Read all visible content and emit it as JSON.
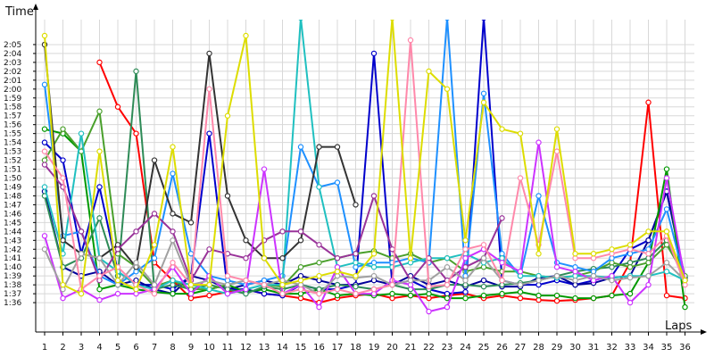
{
  "chart_data": {
    "type": "line",
    "ylabel": "Time",
    "xlabel": "Laps",
    "grid": true,
    "x": [
      1,
      2,
      3,
      4,
      5,
      6,
      7,
      8,
      9,
      10,
      11,
      12,
      13,
      14,
      15,
      16,
      17,
      18,
      19,
      20,
      21,
      22,
      23,
      24,
      25,
      26,
      27,
      28,
      29,
      30,
      31,
      32,
      33,
      34,
      35,
      36
    ],
    "x_ticks": [
      "1",
      "2",
      "3",
      "4",
      "5",
      "6",
      "7",
      "8",
      "9",
      "10",
      "11",
      "12",
      "13",
      "14",
      "15",
      "16",
      "17",
      "18",
      "19",
      "20",
      "21",
      "22",
      "23",
      "24",
      "25",
      "26",
      "27",
      "28",
      "29",
      "30",
      "31",
      "32",
      "33",
      "34",
      "35",
      "36"
    ],
    "ylim": [
      93,
      127
    ],
    "y_ticks": [
      "1:36",
      "1:37",
      "1:38",
      "1:39",
      "1:40",
      "1:41",
      "1:42",
      "1:43",
      "1:44",
      "1:45",
      "1:46",
      "1:47",
      "1:48",
      "1:49",
      "1:50",
      "1:51",
      "1:52",
      "1:53",
      "1:54",
      "1:55",
      "1:56",
      "1:57",
      "1:58",
      "1:59",
      "2:00",
      "2:01",
      "2:02",
      "2:03",
      "2:04",
      "2:05"
    ],
    "y_tick_values": [
      96,
      97,
      98,
      99,
      100,
      101,
      102,
      103,
      104,
      105,
      106,
      107,
      108,
      109,
      110,
      111,
      112,
      113,
      114,
      115,
      116,
      117,
      118,
      119,
      120,
      121,
      122,
      123,
      124,
      125
    ],
    "series": [
      {
        "color": "#ff0000",
        "values": [
          null,
          null,
          null,
          123.0,
          118.0,
          115.0,
          100.5,
          98.5,
          96.5,
          96.8,
          97.2,
          97.5,
          97.0,
          96.8,
          96.5,
          96.0,
          96.5,
          96.8,
          97.0,
          96.5,
          96.8,
          96.5,
          96.8,
          97.0,
          96.5,
          96.8,
          96.5,
          96.3,
          96.2,
          96.3,
          96.5,
          96.8,
          100.5,
          118.5,
          96.8,
          96.5
        ]
      },
      {
        "color": "#0000cc",
        "values": [
          114.0,
          112.0,
          101.5,
          109.0,
          99.5,
          98.0,
          98.0,
          97.5,
          99.0,
          115.0,
          97.5,
          97.5,
          97.0,
          96.8,
          98.0,
          97.5,
          97.5,
          98.0,
          124.0,
          98.0,
          98.5,
          97.5,
          97.0,
          97.2,
          128.0,
          98.5,
          98.0,
          98.0,
          98.5,
          98.0,
          98.5,
          99.0,
          102.0,
          103.0,
          108.5,
          98.5
        ]
      },
      {
        "color": "#000099",
        "values": [
          108.5,
          100.0,
          99.0,
          99.5,
          98.0,
          98.5,
          97.5,
          97.0,
          99.0,
          98.5,
          97.5,
          98.0,
          98.5,
          98.0,
          99.0,
          98.5,
          98.0,
          98.0,
          98.5,
          98.0,
          99.0,
          98.0,
          98.5,
          97.8,
          98.5,
          97.8,
          97.8,
          98.8,
          99.0,
          98.0,
          98.2,
          98.8,
          99.0,
          103.0,
          108.5,
          98.8
        ]
      },
      {
        "color": "#009900",
        "values": [
          115.5,
          115.0,
          113.0,
          97.5,
          98.0,
          97.5,
          97.2,
          97.0,
          97.0,
          97.5,
          98.0,
          97.2,
          97.5,
          97.0,
          97.0,
          97.5,
          96.8,
          97.0,
          96.8,
          97.0,
          96.8,
          97.0,
          96.5,
          96.5,
          96.8,
          97.0,
          97.2,
          96.8,
          96.8,
          96.5,
          96.5,
          96.8,
          97.0,
          100.5,
          111.0,
          95.5
        ]
      },
      {
        "color": "#2e8b57",
        "values": [
          108.0,
          100.0,
          101.0,
          105.5,
          99.0,
          122.0,
          97.5,
          98.0,
          97.5,
          98.0,
          97.5,
          97.0,
          97.8,
          97.5,
          98.0,
          97.5,
          98.0,
          97.8,
          97.5,
          98.0,
          97.5,
          97.5,
          98.0,
          98.0,
          97.8,
          98.0,
          98.2,
          98.5,
          99.0,
          99.5,
          99.8,
          100.0,
          100.5,
          101.0,
          103.0,
          98.5
        ]
      },
      {
        "color": "#4aa02c",
        "values": [
          112.0,
          115.5,
          113.0,
          117.5,
          101.5,
          100.0,
          97.8,
          98.5,
          97.5,
          97.5,
          98.0,
          98.5,
          98.0,
          97.8,
          100.0,
          100.5,
          101.0,
          101.5,
          101.8,
          101.0,
          101.5,
          100.5,
          101.0,
          99.5,
          100.0,
          99.5,
          99.5,
          99.0,
          98.8,
          99.0,
          99.5,
          100.5,
          100.0,
          100.5,
          102.5,
          99.0
        ]
      },
      {
        "color": "#1e90ff",
        "values": [
          120.5,
          103.5,
          104.0,
          99.0,
          98.0,
          99.5,
          101.0,
          110.5,
          101.5,
          99.0,
          98.5,
          98.0,
          98.5,
          99.0,
          113.5,
          109.0,
          109.5,
          100.0,
          100.5,
          100.5,
          101.0,
          100.5,
          128.0,
          99.0,
          119.5,
          101.5,
          99.0,
          108.0,
          100.5,
          100.0,
          99.5,
          101.0,
          101.5,
          102.0,
          106.5,
          98.5
        ]
      },
      {
        "color": "#20c0c0",
        "values": [
          109.0,
          101.5,
          115.0,
          101.0,
          99.5,
          98.0,
          97.5,
          98.5,
          98.0,
          97.5,
          97.0,
          97.5,
          98.0,
          98.0,
          128.0,
          109.0,
          100.0,
          100.5,
          100.0,
          100.0,
          100.5,
          101.0,
          101.0,
          101.5,
          100.5,
          101.0,
          99.0,
          99.0,
          98.8,
          99.0,
          99.0,
          98.8,
          99.0,
          99.0,
          99.5,
          98.5
        ]
      },
      {
        "color": "#333333",
        "values": [
          125.0,
          103.0,
          101.5,
          101.0,
          102.5,
          100.0,
          112.0,
          106.0,
          105.0,
          124.0,
          108.0,
          103.0,
          101.0,
          101.0,
          103.0,
          113.5,
          113.5,
          107.0,
          null,
          null,
          null,
          null,
          null,
          null,
          null,
          null,
          null,
          null,
          null,
          null,
          null,
          null,
          null,
          null,
          null,
          null
        ]
      },
      {
        "color": "#993399",
        "values": [
          111.5,
          109.0,
          104.0,
          98.5,
          102.0,
          104.0,
          106.0,
          104.0,
          98.5,
          102.0,
          101.5,
          101.0,
          103.0,
          104.0,
          104.0,
          102.5,
          101.0,
          101.5,
          108.0,
          102.0,
          98.5,
          101.0,
          98.5,
          100.0,
          101.0,
          105.5,
          null,
          null,
          null,
          null,
          null,
          null,
          null,
          null,
          null,
          null
        ]
      },
      {
        "color": "#cc33ff",
        "values": [
          103.5,
          96.5,
          97.5,
          96.3,
          97.0,
          97.0,
          97.5,
          100.0,
          97.0,
          99.0,
          97.0,
          97.5,
          111.0,
          97.0,
          98.0,
          95.5,
          100.0,
          97.0,
          97.0,
          98.5,
          98.0,
          95.0,
          95.5,
          101.0,
          102.0,
          100.5,
          99.5,
          114.0,
          100.0,
          99.5,
          98.5,
          99.0,
          96.0,
          98.0,
          110.0,
          98.5
        ]
      },
      {
        "color": "#a0a0a0",
        "values": [
          102.0,
          97.5,
          101.5,
          101.0,
          98.0,
          100.5,
          98.0,
          103.0,
          98.0,
          98.5,
          98.0,
          98.5,
          98.0,
          98.5,
          98.0,
          97.0,
          99.0,
          98.8,
          99.0,
          98.0,
          98.5,
          98.5,
          100.0,
          98.5,
          101.0,
          98.5,
          98.0,
          98.5,
          99.0,
          98.5,
          99.0,
          98.5,
          98.8,
          99.0,
          100.5,
          98.5
        ]
      },
      {
        "color": "#ff88aa",
        "values": [
          113.0,
          110.0,
          97.5,
          99.0,
          100.0,
          98.0,
          97.0,
          100.5,
          98.0,
          120.0,
          99.0,
          98.5,
          98.0,
          97.0,
          97.5,
          97.0,
          97.5,
          97.0,
          97.5,
          98.0,
          125.5,
          97.8,
          98.0,
          102.0,
          102.5,
          98.5,
          110.0,
          102.5,
          113.0,
          101.0,
          101.0,
          101.5,
          102.0,
          101.5,
          103.5,
          98.0
        ]
      },
      {
        "color": "#dddd00",
        "values": [
          126.0,
          98.0,
          97.0,
          113.0,
          98.5,
          97.5,
          102.5,
          113.5,
          98.0,
          98.0,
          117.0,
          126.0,
          101.0,
          98.0,
          98.5,
          99.0,
          99.5,
          99.0,
          101.5,
          128.0,
          101.0,
          122.0,
          120.0,
          103.0,
          118.5,
          115.5,
          115.0,
          101.5,
          115.5,
          101.5,
          101.5,
          102.0,
          102.5,
          104.0,
          104.0,
          98.5
        ]
      }
    ]
  }
}
